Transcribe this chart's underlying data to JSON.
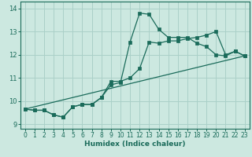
{
  "xlabel": "Humidex (Indice chaleur)",
  "xlim": [
    -0.5,
    23.5
  ],
  "ylim": [
    8.8,
    14.3
  ],
  "yticks": [
    9,
    10,
    11,
    12,
    13,
    14
  ],
  "xticks": [
    0,
    1,
    2,
    3,
    4,
    5,
    6,
    7,
    8,
    9,
    10,
    11,
    12,
    13,
    14,
    15,
    16,
    17,
    18,
    19,
    20,
    21,
    22,
    23
  ],
  "bg_color": "#cce8e0",
  "grid_color": "#aad0c8",
  "line_color": "#1a6b5a",
  "line1_x": [
    0,
    1,
    2,
    3,
    4,
    5,
    6,
    7,
    8,
    9,
    10,
    11,
    12,
    13,
    14,
    15,
    16,
    17,
    18,
    19,
    20,
    21,
    22,
    23
  ],
  "line1_y": [
    9.65,
    9.6,
    9.6,
    9.4,
    9.3,
    9.75,
    9.85,
    9.85,
    10.15,
    10.7,
    10.8,
    12.55,
    13.8,
    13.75,
    13.1,
    12.75,
    12.75,
    12.75,
    12.5,
    12.35,
    12.0,
    11.95,
    12.15,
    11.95
  ],
  "line2_x": [
    0,
    1,
    2,
    3,
    4,
    5,
    6,
    7,
    8,
    9,
    10,
    11,
    12,
    13,
    14,
    15,
    16,
    17,
    18,
    19,
    20,
    21,
    22,
    23
  ],
  "line2_y": [
    9.65,
    9.6,
    9.6,
    9.4,
    9.3,
    9.75,
    9.85,
    9.85,
    10.15,
    10.85,
    10.85,
    11.0,
    11.4,
    12.55,
    12.5,
    12.6,
    12.6,
    12.7,
    12.75,
    12.85,
    13.0,
    12.0,
    12.15,
    11.95
  ],
  "line3_x": [
    0,
    23
  ],
  "line3_y": [
    9.65,
    11.95
  ]
}
